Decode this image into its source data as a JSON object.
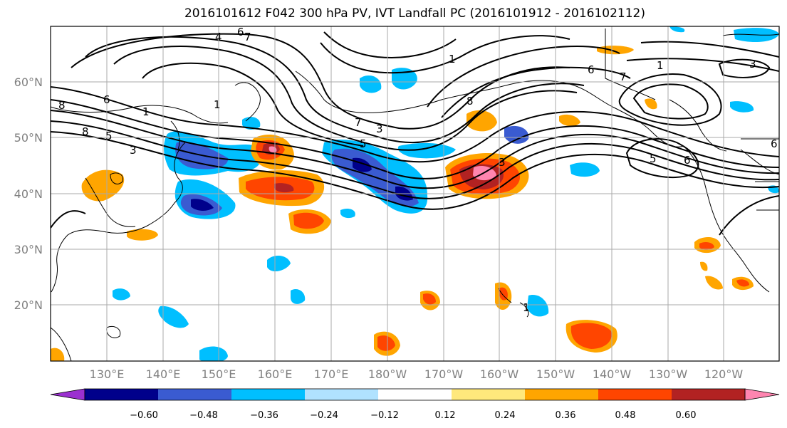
{
  "title": "2016101612 F042 300 hPa PV, IVT Landfall PC (2016101912 - 2016102112)",
  "lat_labels": [
    "60°N",
    "50°N",
    "40°N",
    "30°N",
    "20°N"
  ],
  "lon_labels": [
    "130°E",
    "140°E",
    "150°E",
    "160°E",
    "170°E",
    "180°W",
    "170°W",
    "160°W",
    "150°W",
    "140°W",
    "130°W",
    "120°W"
  ],
  "colorbar": {
    "ticks": [
      "−0.60",
      "−0.48",
      "−0.36",
      "−0.24",
      "−0.12",
      "0.12",
      "0.24",
      "0.36",
      "0.48",
      "0.60"
    ],
    "colors": [
      "#9b30d0",
      "#00008b",
      "#3a5bd1",
      "#00bfff",
      "#b0e2ff",
      "#ffffff",
      "#ffe87c",
      "#ffa500",
      "#ff4500",
      "#b22222",
      "#ff85b0"
    ]
  },
  "contour_labels": [
    "6",
    "4",
    "7",
    "1",
    "8",
    "6",
    "5",
    "8",
    "1",
    "7",
    "3",
    "5",
    "3",
    "8",
    "1",
    "3",
    "6",
    "7",
    "5",
    "6",
    "3",
    "1",
    "6",
    "1"
  ]
}
